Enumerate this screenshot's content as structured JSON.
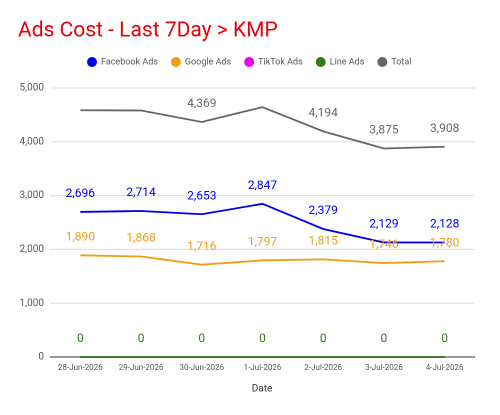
{
  "chart_data": {
    "type": "line",
    "title": "Ads Cost - Last 7Day > KMP",
    "x_label": "Date",
    "categories": [
      "28-Jun-2026",
      "29-Jun-2026",
      "30-Jun-2026",
      "1-Jul-2026",
      "2-Jul-2026",
      "3-Jul-2026",
      "4-Jul-2026"
    ],
    "series": [
      {
        "name": "Facebook Ads",
        "color": "#0000ee",
        "values": [
          2696,
          2714,
          2653,
          2847,
          2379,
          2129,
          2128
        ],
        "value_labels": [
          "2,696",
          "2,714",
          "2,653",
          "2,847",
          "2,379",
          "2,129",
          "2,128"
        ]
      },
      {
        "name": "Google Ads",
        "color": "#f39c12",
        "values": [
          1890,
          1868,
          1716,
          1797,
          1815,
          1746,
          1780
        ],
        "value_labels": [
          "1,890",
          "1,868",
          "1,716",
          "1,797",
          "1,815",
          "1,746",
          "1,780"
        ]
      },
      {
        "name": "TikTok Ads",
        "color": "#ee00ee",
        "values": [
          0,
          0,
          0,
          0,
          0,
          0,
          0
        ]
      },
      {
        "name": "Line Ads",
        "color": "#2e7d1a",
        "values": [
          0,
          0,
          0,
          0,
          0,
          0,
          0
        ],
        "value_labels": [
          "0",
          "0",
          "0",
          "0",
          "0",
          "0",
          "0"
        ]
      },
      {
        "name": "Total",
        "color": "#666666",
        "values": [
          4586,
          4582,
          4369,
          4644,
          4194,
          3875,
          3908
        ],
        "value_labels": [
          null,
          null,
          "4,369",
          null,
          "4,194",
          "3,875",
          "3,908"
        ]
      }
    ],
    "ylim": [
      0,
      5000
    ],
    "yticks": [
      0,
      {
        "value": 1000,
        "label": "1,000"
      },
      {
        "value": 2000,
        "label": "2,000"
      },
      {
        "value": 3000,
        "label": "3,000"
      },
      {
        "value": 4000,
        "label": "4,000"
      },
      {
        "value": 5000,
        "label": "5,000"
      }
    ],
    "grid": true
  }
}
